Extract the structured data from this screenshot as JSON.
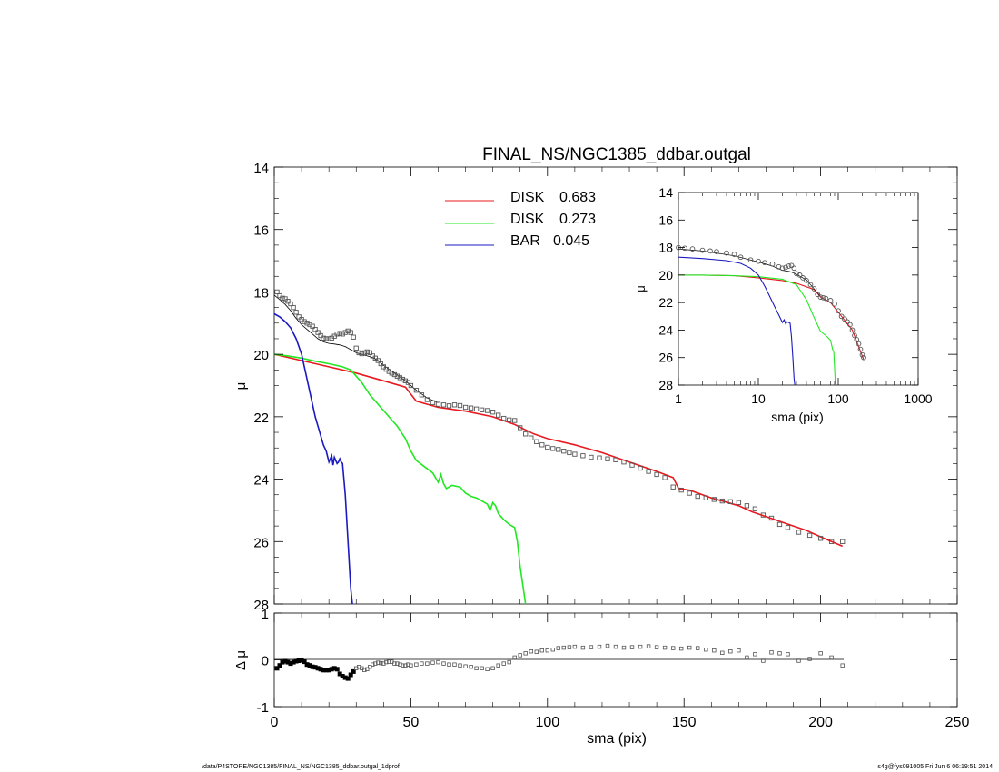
{
  "footer": {
    "path": "/data/P4STORE/NGC1385/FINAL_NS/NGC1385_ddbar.outgal_1dprof",
    "stamp": "s4g@fys091005  Fri Jun  6 06:19:51 2014"
  },
  "chart_data": [
    {
      "type": "scatter",
      "panel": "main",
      "title": "FINAL_NS/NGC1385_ddbar.outgal",
      "xlabel": "",
      "ylabel": "μ",
      "xlim": [
        0,
        250
      ],
      "ylim": [
        28,
        14
      ],
      "y_inverted": true,
      "yticks": [
        "14",
        "16",
        "18",
        "20",
        "22",
        "24",
        "26",
        "28"
      ],
      "legend_position": "top-center",
      "legend": [
        {
          "label": "DISK",
          "value": "0.683",
          "color": "#e8191e"
        },
        {
          "label": "DISK",
          "value": "0.273",
          "color": "#22e822"
        },
        {
          "label": "BAR",
          "value": "0.045",
          "color": "#1a1ac0"
        }
      ],
      "observed_points": {
        "x": [
          1,
          2,
          3,
          4,
          5,
          6,
          7,
          8,
          9,
          10,
          11,
          12,
          13,
          14,
          15,
          16,
          17,
          18,
          19,
          20,
          21,
          22,
          23,
          24,
          25,
          26,
          27,
          28,
          29,
          30,
          31,
          32,
          33,
          34,
          35,
          36,
          37,
          38,
          39,
          40,
          41,
          42,
          43,
          44,
          45,
          46,
          47,
          48,
          49,
          50,
          52,
          54,
          56,
          58,
          60,
          62,
          64,
          66,
          68,
          70,
          72,
          74,
          76,
          78,
          80,
          82,
          84,
          86,
          88,
          90,
          92,
          94,
          96,
          98,
          100,
          102,
          104,
          106,
          108,
          110,
          113,
          116,
          119,
          122,
          125,
          128,
          131,
          134,
          137,
          140,
          143,
          146,
          149,
          152,
          155,
          158,
          161,
          164,
          167,
          170,
          173,
          176,
          179,
          182,
          185,
          188,
          192,
          196,
          200,
          204,
          208
        ],
        "y": [
          18.0,
          18.12,
          18.2,
          18.22,
          18.3,
          18.38,
          18.5,
          18.65,
          18.8,
          18.88,
          18.95,
          19.0,
          19.05,
          19.1,
          19.2,
          19.3,
          19.4,
          19.48,
          19.5,
          19.5,
          19.48,
          19.42,
          19.35,
          19.33,
          19.35,
          19.3,
          19.25,
          19.3,
          19.45,
          19.8,
          19.95,
          19.98,
          19.95,
          19.92,
          19.95,
          20.05,
          20.12,
          20.2,
          20.3,
          20.4,
          20.48,
          20.55,
          20.6,
          20.65,
          20.7,
          20.75,
          20.8,
          20.85,
          20.9,
          21.0,
          21.15,
          21.3,
          21.45,
          21.55,
          21.6,
          21.62,
          21.65,
          21.62,
          21.64,
          21.7,
          21.72,
          21.75,
          21.78,
          21.8,
          21.85,
          21.95,
          22.05,
          22.1,
          22.12,
          22.35,
          22.55,
          22.68,
          22.8,
          22.9,
          22.98,
          23.02,
          23.05,
          23.1,
          23.15,
          23.2,
          23.25,
          23.3,
          23.32,
          23.35,
          23.38,
          23.45,
          23.55,
          23.65,
          23.75,
          23.85,
          23.95,
          24.25,
          24.35,
          24.45,
          24.55,
          24.6,
          24.65,
          24.7,
          24.72,
          24.75,
          24.85,
          24.95,
          25.15,
          25.25,
          25.45,
          25.55,
          25.7,
          25.8,
          25.9,
          26.0,
          26.0
        ]
      },
      "series": [
        {
          "name": "DISK",
          "color": "#e8191e",
          "x": [
            0,
            10,
            20,
            30,
            40,
            48,
            52,
            60,
            70,
            80,
            88,
            95,
            100,
            110,
            120,
            130,
            140,
            146,
            148,
            152,
            160,
            170,
            175,
            180,
            185,
            190,
            195,
            200,
            208
          ],
          "y": [
            20.0,
            20.2,
            20.4,
            20.6,
            20.85,
            21.05,
            21.5,
            21.7,
            21.82,
            22.0,
            22.25,
            22.55,
            22.7,
            22.9,
            23.15,
            23.45,
            23.75,
            23.95,
            24.3,
            24.35,
            24.6,
            24.85,
            25.05,
            25.2,
            25.35,
            25.5,
            25.65,
            25.85,
            26.15
          ]
        },
        {
          "name": "DISK",
          "color": "#22e822",
          "x": [
            0,
            5,
            10,
            15,
            20,
            25,
            28,
            30,
            32,
            35,
            40,
            45,
            48,
            50,
            52,
            55,
            58,
            60,
            61,
            62,
            63,
            65,
            68,
            70,
            72,
            74,
            76,
            78,
            79,
            80,
            81,
            82,
            84,
            86,
            88,
            89,
            90,
            92
          ],
          "y": [
            20.0,
            20.05,
            20.12,
            20.22,
            20.3,
            20.4,
            20.5,
            20.7,
            20.9,
            21.3,
            21.8,
            22.3,
            22.7,
            23.1,
            23.4,
            23.6,
            23.8,
            24.1,
            23.85,
            24.15,
            24.3,
            24.2,
            24.25,
            24.45,
            24.55,
            24.6,
            24.7,
            24.8,
            25.0,
            24.75,
            24.85,
            25.1,
            25.3,
            25.45,
            25.55,
            26.0,
            26.8,
            28.0
          ]
        },
        {
          "name": "BAR",
          "color": "#1a1ac0",
          "x": [
            0,
            2,
            4,
            6,
            8,
            10,
            12,
            14,
            15,
            16,
            17,
            18,
            19,
            20,
            21,
            21.5,
            22,
            22.5,
            23,
            23.5,
            24,
            24.5,
            25,
            26,
            27,
            28,
            28.6
          ],
          "y": [
            18.7,
            18.8,
            18.95,
            19.15,
            19.5,
            20.0,
            20.8,
            21.6,
            22.0,
            22.3,
            22.6,
            22.9,
            23.1,
            23.45,
            23.25,
            23.55,
            23.3,
            23.4,
            23.5,
            23.45,
            23.35,
            23.45,
            23.5,
            24.5,
            26.0,
            27.5,
            28.0
          ]
        },
        {
          "name": "",
          "color": "#000000",
          "x": [
            0,
            2,
            4,
            6,
            8,
            10,
            12,
            14,
            16,
            18,
            20,
            22,
            24,
            26,
            28,
            30,
            32,
            34,
            36,
            38,
            40,
            44,
            48,
            52,
            56,
            60
          ],
          "y": [
            18.1,
            18.25,
            18.4,
            18.6,
            18.85,
            19.05,
            19.2,
            19.35,
            19.5,
            19.6,
            19.65,
            19.67,
            19.7,
            19.75,
            19.85,
            19.95,
            20.0,
            20.05,
            20.1,
            20.2,
            20.35,
            20.6,
            20.85,
            21.15,
            21.4,
            21.55
          ]
        }
      ]
    },
    {
      "type": "line",
      "panel": "inset",
      "xlabel": "sma (pix)",
      "ylabel": "μ",
      "xscale": "log",
      "xlim": [
        1,
        1000
      ],
      "ylim": [
        28,
        14
      ],
      "y_inverted": true,
      "xticks": [
        "1",
        "10",
        "100",
        "1000"
      ],
      "yticks": [
        "14",
        "16",
        "18",
        "20",
        "22",
        "24",
        "26",
        "28"
      ],
      "observed_points": {
        "x": [
          1,
          1.2,
          1.5,
          2,
          2.5,
          3,
          4,
          5,
          6,
          8,
          10,
          12,
          15,
          18,
          20,
          22,
          24,
          26,
          28,
          30,
          33,
          36,
          40,
          45,
          50,
          55,
          60,
          65,
          70,
          80,
          90,
          100,
          110,
          120,
          130,
          140,
          150,
          160,
          170,
          180,
          190,
          200,
          208
        ],
        "y": [
          18.0,
          18.05,
          18.1,
          18.2,
          18.25,
          18.3,
          18.4,
          18.5,
          18.7,
          18.9,
          19.0,
          19.1,
          19.2,
          19.4,
          19.5,
          19.45,
          19.35,
          19.3,
          19.5,
          19.9,
          20.0,
          20.2,
          20.4,
          20.7,
          21.0,
          21.4,
          21.6,
          21.65,
          21.7,
          21.85,
          22.1,
          22.6,
          23.0,
          23.2,
          23.4,
          23.6,
          24.0,
          24.4,
          24.7,
          25.0,
          25.4,
          25.8,
          26.0
        ]
      },
      "series": [
        {
          "name": "DISK",
          "color": "#e8191e",
          "x": [
            1,
            2,
            5,
            10,
            20,
            30,
            50,
            60,
            80,
            100,
            150,
            208
          ],
          "y": [
            20.0,
            20.0,
            20.05,
            20.2,
            20.4,
            20.6,
            21.05,
            21.6,
            22.0,
            22.7,
            24.0,
            26.15
          ]
        },
        {
          "name": "DISK",
          "color": "#22e822",
          "x": [
            1,
            2,
            5,
            10,
            20,
            30,
            40,
            50,
            60,
            70,
            80,
            85,
            88,
            90,
            92
          ],
          "y": [
            20.0,
            20.0,
            20.05,
            20.12,
            20.3,
            20.7,
            21.8,
            23.1,
            24.1,
            24.4,
            24.75,
            25.4,
            25.6,
            26.8,
            28.0
          ]
        },
        {
          "name": "BAR",
          "color": "#1a1ac0",
          "x": [
            1,
            2,
            4,
            6,
            8,
            10,
            12,
            14,
            16,
            18,
            20,
            21,
            22,
            23,
            24,
            25,
            26,
            27,
            28,
            28.6
          ],
          "y": [
            18.7,
            18.8,
            18.95,
            19.15,
            19.5,
            20.0,
            20.8,
            21.6,
            22.3,
            22.9,
            23.45,
            23.25,
            23.55,
            23.4,
            23.45,
            23.5,
            24.5,
            26.0,
            27.5,
            28.0
          ]
        },
        {
          "name": "",
          "color": "#000000",
          "x": [
            1,
            2,
            5,
            10,
            15,
            20,
            25,
            30,
            40,
            60
          ],
          "y": [
            18.1,
            18.25,
            18.6,
            19.05,
            19.35,
            19.65,
            19.75,
            19.95,
            20.35,
            21.55
          ]
        }
      ]
    },
    {
      "type": "scatter",
      "panel": "residual",
      "xlabel": "sma (pix)",
      "ylabel": "Δ μ",
      "xlim": [
        0,
        250
      ],
      "ylim": [
        -1,
        1
      ],
      "xticks": [
        "0",
        "50",
        "100",
        "150",
        "200",
        "250"
      ],
      "yticks": [
        "1",
        "0",
        "-1"
      ],
      "zero_line": true,
      "points": {
        "x": [
          1,
          2,
          3,
          4,
          5,
          6,
          7,
          8,
          9,
          10,
          11,
          12,
          13,
          14,
          15,
          16,
          17,
          18,
          19,
          20,
          21,
          22,
          23,
          24,
          25,
          26,
          27,
          28,
          29,
          30,
          31,
          32,
          33,
          34,
          35,
          36,
          37,
          38,
          39,
          40,
          41,
          42,
          43,
          44,
          45,
          46,
          47,
          48,
          49,
          50,
          52,
          54,
          56,
          58,
          60,
          62,
          64,
          66,
          68,
          70,
          72,
          74,
          76,
          78,
          80,
          82,
          84,
          86,
          88,
          90,
          92,
          94,
          96,
          98,
          100,
          102,
          104,
          106,
          108,
          110,
          113,
          116,
          119,
          122,
          125,
          128,
          131,
          134,
          137,
          140,
          143,
          146,
          149,
          152,
          155,
          158,
          161,
          164,
          167,
          170,
          173,
          176,
          179,
          182,
          185,
          188,
          192,
          196,
          200,
          204,
          208
        ],
        "y": [
          -0.18,
          -0.12,
          -0.05,
          -0.03,
          -0.05,
          -0.08,
          -0.05,
          -0.03,
          -0.02,
          0.0,
          -0.04,
          -0.1,
          -0.12,
          -0.15,
          -0.16,
          -0.18,
          -0.2,
          -0.22,
          -0.22,
          -0.22,
          -0.2,
          -0.18,
          -0.2,
          -0.3,
          -0.35,
          -0.38,
          -0.4,
          -0.32,
          -0.25,
          -0.18,
          -0.15,
          -0.18,
          -0.22,
          -0.2,
          -0.15,
          -0.1,
          -0.08,
          -0.06,
          -0.07,
          -0.08,
          -0.05,
          -0.04,
          -0.04,
          -0.08,
          -0.08,
          -0.1,
          -0.12,
          -0.12,
          -0.1,
          -0.12,
          -0.1,
          -0.08,
          -0.08,
          -0.06,
          -0.05,
          -0.08,
          -0.1,
          -0.1,
          -0.12,
          -0.14,
          -0.15,
          -0.18,
          -0.18,
          -0.2,
          -0.18,
          -0.12,
          -0.08,
          -0.05,
          0.05,
          0.1,
          0.14,
          0.18,
          0.17,
          0.2,
          0.2,
          0.22,
          0.25,
          0.26,
          0.27,
          0.28,
          0.26,
          0.27,
          0.28,
          0.3,
          0.28,
          0.26,
          0.27,
          0.28,
          0.29,
          0.27,
          0.26,
          0.25,
          0.24,
          0.26,
          0.25,
          0.22,
          0.2,
          0.15,
          0.18,
          0.2,
          0.05,
          0.12,
          -0.02,
          0.16,
          0.14,
          0.12,
          -0.02,
          0.02,
          0.14,
          0.05,
          -0.12
        ]
      }
    }
  ]
}
